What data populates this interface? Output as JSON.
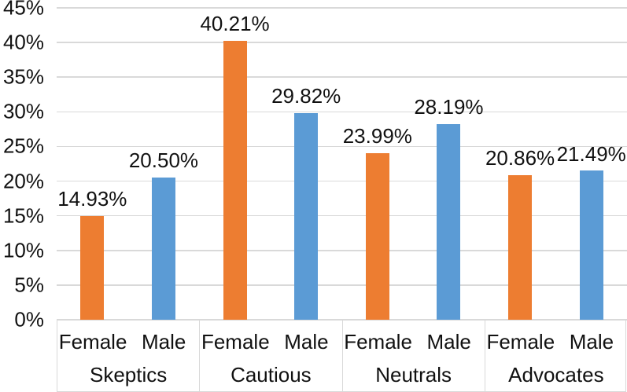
{
  "chart_data": {
    "type": "bar",
    "title": "",
    "categories": [
      "Skeptics",
      "Cautious",
      "Neutrals",
      "Advocates"
    ],
    "sub_categories": [
      "Female",
      "Male"
    ],
    "series": [
      {
        "name": "Female",
        "color": "#ED7D31",
        "values": [
          14.93,
          40.21,
          23.99,
          20.86
        ],
        "labels": [
          "14.93%",
          "40.21%",
          "23.99%",
          "20.86%"
        ]
      },
      {
        "name": "Male",
        "color": "#5B9BD5",
        "values": [
          20.5,
          29.82,
          28.19,
          21.49
        ],
        "labels": [
          "20.50%",
          "29.82%",
          "28.19%",
          "21.49%"
        ]
      }
    ],
    "y_axis": {
      "min": 0,
      "max": 45,
      "step": 5,
      "tick_labels": [
        "0%",
        "5%",
        "10%",
        "15%",
        "20%",
        "25%",
        "30%",
        "35%",
        "40%",
        "45%"
      ]
    },
    "grid": true,
    "legend_position": "none",
    "colors": {
      "gridline": "#D9D9D9",
      "axis_box": "#D9D9D9",
      "text": "#111111",
      "background": "#FFFFFF"
    }
  }
}
